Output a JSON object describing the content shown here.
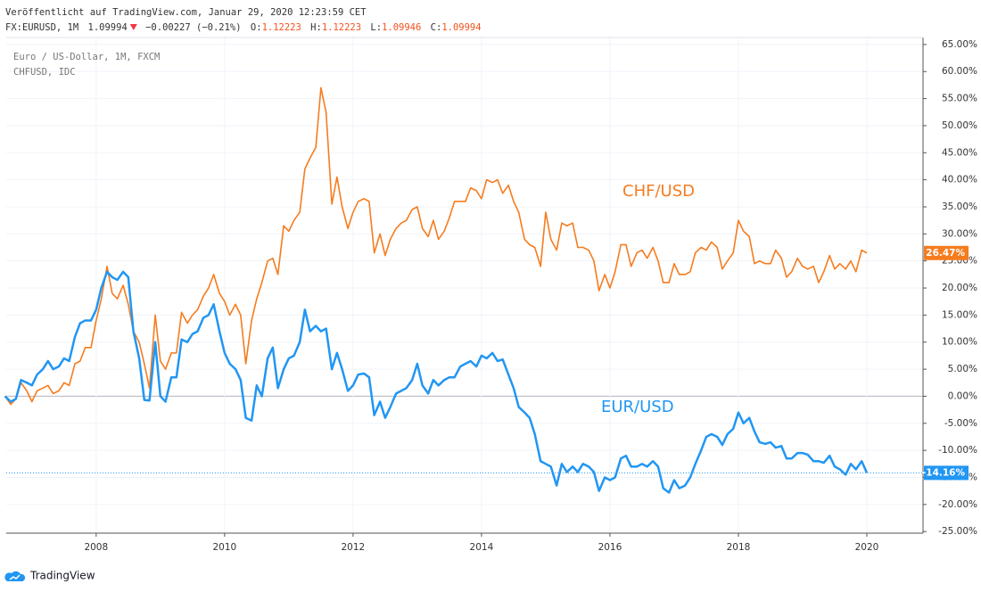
{
  "header": {
    "published": "Veröffentlicht auf TradingView.com, Januar 29, 2020 12:23:59 CET",
    "symbol": "FX:EURUSD, 1M",
    "last": "1.09994",
    "change": "−0.00227 (−0.21%)",
    "ohlc": [
      [
        "O:",
        "1.12223"
      ],
      [
        "H:",
        "1.12223"
      ],
      [
        "L:",
        "1.09946"
      ],
      [
        "C:",
        "1.09994"
      ]
    ]
  },
  "footer": {
    "brand": "TradingView"
  },
  "chart_data": {
    "type": "line",
    "grid": true,
    "xlim": [
      2006.6,
      2020.875
    ],
    "xticks": [
      2008,
      2010,
      2012,
      2014,
      2016,
      2018,
      2020
    ],
    "ylim": [
      -25.3,
      66.3
    ],
    "yticks": [
      {
        "value": 65,
        "label": "65.00%"
      },
      {
        "value": 60,
        "label": "60.00%"
      },
      {
        "value": 55,
        "label": "55.00%"
      },
      {
        "value": 50,
        "label": "50.00%"
      },
      {
        "value": 45,
        "label": "45.00%"
      },
      {
        "value": 40,
        "label": "40.00%"
      },
      {
        "value": 35,
        "label": "35.00%"
      },
      {
        "value": 30,
        "label": "30.00%"
      },
      {
        "value": 25,
        "label": "25.00%"
      },
      {
        "value": 20,
        "label": "20.00%"
      },
      {
        "value": 15,
        "label": "15.00%"
      },
      {
        "value": 10,
        "label": "10.00%"
      },
      {
        "value": 5,
        "label": "5.00%"
      },
      {
        "value": 0,
        "label": "0.00%"
      },
      {
        "value": -5,
        "label": "-5.00%"
      },
      {
        "value": -10,
        "label": "-10.00%"
      },
      {
        "value": -15,
        "label": "-15.00%"
      },
      {
        "value": -20,
        "label": "-20.00%"
      },
      {
        "value": -25,
        "label": "-25.00%"
      }
    ],
    "x": [
      2006.58,
      2006.67,
      2006.75,
      2006.83,
      2006.92,
      2007,
      2007.08,
      2007.17,
      2007.25,
      2007.33,
      2007.42,
      2007.5,
      2007.58,
      2007.67,
      2007.75,
      2007.83,
      2007.92,
      2008,
      2008.08,
      2008.17,
      2008.25,
      2008.33,
      2008.42,
      2008.5,
      2008.58,
      2008.67,
      2008.75,
      2008.83,
      2008.92,
      2009,
      2009.08,
      2009.17,
      2009.25,
      2009.33,
      2009.42,
      2009.5,
      2009.58,
      2009.67,
      2009.75,
      2009.83,
      2009.92,
      2010,
      2010.08,
      2010.17,
      2010.25,
      2010.33,
      2010.42,
      2010.5,
      2010.58,
      2010.67,
      2010.75,
      2010.83,
      2010.92,
      2011,
      2011.08,
      2011.17,
      2011.25,
      2011.33,
      2011.42,
      2011.5,
      2011.58,
      2011.67,
      2011.75,
      2011.83,
      2011.92,
      2012,
      2012.08,
      2012.17,
      2012.25,
      2012.33,
      2012.42,
      2012.5,
      2012.58,
      2012.67,
      2012.75,
      2012.83,
      2012.92,
      2013,
      2013.08,
      2013.17,
      2013.25,
      2013.33,
      2013.42,
      2013.5,
      2013.58,
      2013.67,
      2013.75,
      2013.83,
      2013.92,
      2014,
      2014.08,
      2014.17,
      2014.25,
      2014.33,
      2014.42,
      2014.5,
      2014.58,
      2014.67,
      2014.75,
      2014.83,
      2014.92,
      2015,
      2015.08,
      2015.17,
      2015.25,
      2015.33,
      2015.42,
      2015.5,
      2015.58,
      2015.67,
      2015.75,
      2015.83,
      2015.92,
      2016,
      2016.08,
      2016.17,
      2016.25,
      2016.33,
      2016.42,
      2016.5,
      2016.58,
      2016.67,
      2016.75,
      2016.83,
      2016.92,
      2017,
      2017.08,
      2017.17,
      2017.25,
      2017.33,
      2017.42,
      2017.5,
      2017.58,
      2017.67,
      2017.75,
      2017.83,
      2017.92,
      2018,
      2018.08,
      2018.17,
      2018.25,
      2018.33,
      2018.42,
      2018.5,
      2018.58,
      2018.67,
      2018.75,
      2018.83,
      2018.92,
      2019,
      2019.08,
      2019.17,
      2019.25,
      2019.33,
      2019.42,
      2019.5,
      2019.58,
      2019.67,
      2019.75,
      2019.83,
      2019.92,
      2020
    ],
    "series": [
      {
        "name": "CHFUSD, IDC",
        "label": "CHF/USD",
        "color": "#f57c1f",
        "last_label": {
          "value": 26.47,
          "label": "26.47%"
        },
        "values": [
          0,
          -1.5,
          -0.5,
          2.5,
          1,
          -1,
          1,
          1.5,
          2,
          0.5,
          1,
          2.5,
          2,
          6,
          6.5,
          9,
          9,
          14,
          18,
          24,
          19,
          18,
          20.5,
          17,
          12,
          10,
          6,
          1.5,
          15,
          6.5,
          5,
          8,
          8,
          15.5,
          13.5,
          15,
          16,
          18.5,
          20,
          22.5,
          19,
          17.5,
          15,
          17,
          15,
          6,
          14,
          18,
          21,
          25,
          25.5,
          22.5,
          31.5,
          30.5,
          32.5,
          34,
          42,
          44,
          46,
          57,
          52.5,
          35.5,
          40.5,
          35,
          31,
          34,
          36,
          36.5,
          36,
          26.5,
          30,
          26,
          29,
          31,
          32,
          32.5,
          34.5,
          35,
          31,
          29.5,
          32.5,
          29,
          30.5,
          33,
          36,
          36,
          36,
          38.5,
          38,
          36.5,
          40,
          39.5,
          40,
          37.5,
          39,
          36,
          34,
          29,
          28,
          27.5,
          24,
          34,
          29,
          27,
          32,
          31.5,
          32,
          27.5,
          27.5,
          27,
          25,
          19.5,
          22.5,
          20,
          23,
          28,
          28,
          24,
          26.5,
          27,
          25.5,
          27.5,
          25,
          21,
          21,
          24.5,
          22.5,
          22.5,
          23,
          26.5,
          27.5,
          27,
          28.5,
          27.5,
          23.5,
          25,
          26.5,
          32.5,
          30.5,
          29.5,
          24.5,
          25,
          24.5,
          24.5,
          27,
          25.5,
          22,
          23,
          25.5,
          24,
          23.5,
          24,
          21,
          23,
          26,
          23.5,
          24.5,
          23.5,
          25,
          23,
          27,
          26.47
        ]
      },
      {
        "name": "Euro / US-Dollar, 1M, FXCM",
        "label": "EUR/USD",
        "color": "#2196f3",
        "last_label": {
          "value": -14.16,
          "label": "-14.16%"
        },
        "values": [
          0,
          -1,
          -0.5,
          3,
          2.5,
          2,
          4,
          5,
          6.5,
          5,
          5.5,
          7,
          6.5,
          11,
          13.5,
          14,
          14,
          16,
          20,
          23,
          22,
          21.5,
          23,
          22,
          12,
          7,
          -0.7,
          -0.8,
          10,
          0,
          -1,
          3.5,
          3.5,
          10.5,
          10,
          11.5,
          12,
          14.5,
          15,
          17,
          12,
          8,
          6,
          5,
          3,
          -4,
          -4.5,
          2,
          0,
          7,
          9,
          1.5,
          5,
          7,
          7.5,
          10,
          16,
          12,
          13,
          12,
          12.5,
          5,
          8,
          5,
          1,
          2,
          4,
          4.2,
          3.5,
          -3.5,
          -1,
          -4,
          -2,
          0.5,
          1,
          1.5,
          3,
          6,
          2,
          0.5,
          3,
          2,
          3,
          3.5,
          3.5,
          5.5,
          6,
          6.5,
          5.5,
          7.5,
          7,
          8,
          6.5,
          6.8,
          4,
          1.5,
          -2,
          -3,
          -4,
          -7,
          -12,
          -12.5,
          -13,
          -16.5,
          -12.5,
          -14,
          -13,
          -14,
          -12.5,
          -13,
          -14,
          -17.5,
          -15,
          -15.5,
          -15,
          -11.5,
          -11,
          -13,
          -13,
          -12.5,
          -13,
          -12,
          -13,
          -17,
          -17.8,
          -15.5,
          -17,
          -16.5,
          -15,
          -12.5,
          -10,
          -7.5,
          -7,
          -7.5,
          -9,
          -7,
          -6,
          -3,
          -5,
          -4,
          -6.5,
          -8.5,
          -8.8,
          -8.5,
          -9.5,
          -9.2,
          -11.5,
          -11.5,
          -10.5,
          -10.5,
          -10.8,
          -12,
          -12,
          -12.3,
          -11,
          -13,
          -13.5,
          -14.5,
          -12.5,
          -13.5,
          -12,
          -14.16
        ]
      }
    ]
  }
}
